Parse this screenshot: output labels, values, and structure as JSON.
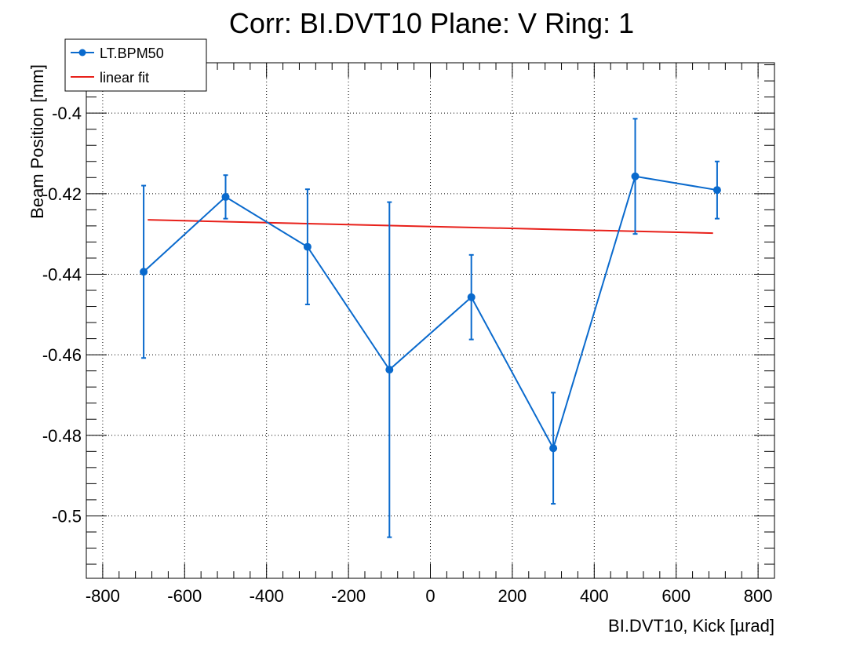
{
  "chart_data": {
    "type": "scatter",
    "title": "Corr: BI.DVT10 Plane: V Ring: 1",
    "xlabel": "BI.DVT10, Kick [µrad]",
    "ylabel": "Beam Position [mm]",
    "xlim": [
      -840,
      840
    ],
    "ylim": [
      -0.5155,
      -0.3875
    ],
    "xticks": [
      -800,
      -600,
      -400,
      -200,
      0,
      200,
      400,
      600,
      800
    ],
    "xtick_labels": [
      "-800",
      "-600",
      "-400",
      "-200",
      "0",
      "200",
      "400",
      "600",
      "800"
    ],
    "yticks": [
      -0.5,
      -0.48,
      -0.46,
      -0.44,
      -0.42,
      -0.4
    ],
    "ytick_labels": [
      "-0.5",
      "-0.48",
      "-0.46",
      "-0.44",
      "-0.42",
      "-0.4"
    ],
    "grid": true,
    "legend_position": "top-left",
    "series": [
      {
        "name": "LT.BPM50",
        "kind": "line-markers-errorbars",
        "color": "#0a6acd",
        "x": [
          -700,
          -500,
          -300,
          -100,
          100,
          300,
          500,
          700
        ],
        "y": [
          -0.4394,
          -0.4208,
          -0.4332,
          -0.4637,
          -0.4457,
          -0.4832,
          -0.4157,
          -0.4191
        ],
        "yerr": [
          0.0214,
          0.0054,
          0.0143,
          0.0416,
          0.0105,
          0.0138,
          0.0143,
          0.0071
        ]
      },
      {
        "name": "linear fit",
        "kind": "line",
        "color": "#e8201a",
        "x": [
          -690,
          690
        ],
        "y": [
          -0.4265,
          -0.4298
        ]
      }
    ]
  }
}
